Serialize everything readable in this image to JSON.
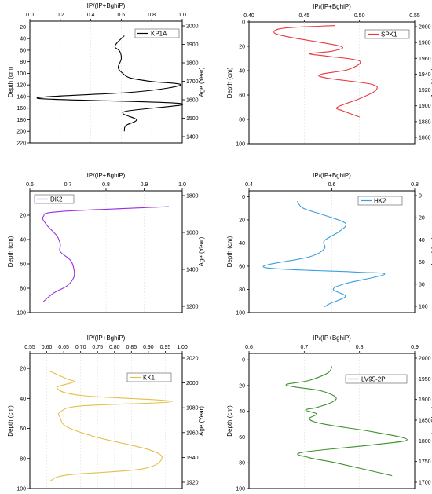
{
  "chart_data": [
    {
      "type": "line",
      "top_label": "IP/(IP+BghiP)",
      "ylabel": "Depth (cm)",
      "right_label": "Age (Year)",
      "legend": "KP1A",
      "series_color": "#000000",
      "xlim": [
        0.0,
        1.0
      ],
      "xticks": [
        "0.0",
        "0.2",
        "0.4",
        "0.6",
        "0.8",
        "1.0"
      ],
      "depth_lim": [
        10,
        220
      ],
      "depth_ticks": [
        "20",
        "40",
        "60",
        "80",
        "100",
        "120",
        "140",
        "160",
        "180",
        "200",
        "220"
      ],
      "age_ticks": [
        "2000",
        "1900",
        "1800",
        "1700",
        "1600",
        "1500",
        "1400"
      ],
      "points": [
        {
          "x": 0.62,
          "depth": 35
        },
        {
          "x": 0.57,
          "depth": 48
        },
        {
          "x": 0.56,
          "depth": 55
        },
        {
          "x": 0.59,
          "depth": 62
        },
        {
          "x": 0.6,
          "depth": 75
        },
        {
          "x": 0.58,
          "depth": 90
        },
        {
          "x": 0.61,
          "depth": 100
        },
        {
          "x": 0.66,
          "depth": 108
        },
        {
          "x": 0.8,
          "depth": 114
        },
        {
          "x": 0.99,
          "depth": 120
        },
        {
          "x": 0.7,
          "depth": 132
        },
        {
          "x": 0.05,
          "depth": 143
        },
        {
          "x": 0.99,
          "depth": 152
        },
        {
          "x": 0.62,
          "depth": 166
        },
        {
          "x": 0.7,
          "depth": 180
        },
        {
          "x": 0.63,
          "depth": 190
        },
        {
          "x": 0.62,
          "depth": 200
        }
      ]
    },
    {
      "type": "line",
      "top_label": "IP/(IP+BghiP)",
      "ylabel": "Depth (cm)",
      "right_label": "Age (Year)",
      "legend": "SPK1",
      "series_color": "#e8383d",
      "xlim": [
        0.4,
        0.55
      ],
      "xticks": [
        "0.40",
        "0.45",
        "0.50",
        "0.55"
      ],
      "depth_lim": [
        0,
        100
      ],
      "depth_ticks": [
        "0",
        "20",
        "40",
        "60",
        "80",
        "100"
      ],
      "age_ticks": [
        "2000",
        "1980",
        "1960",
        "1940",
        "1920",
        "1900",
        "1880",
        "1860"
      ],
      "points": [
        {
          "x": 0.478,
          "depth": 3
        },
        {
          "x": 0.432,
          "depth": 5
        },
        {
          "x": 0.423,
          "depth": 9
        },
        {
          "x": 0.44,
          "depth": 13
        },
        {
          "x": 0.483,
          "depth": 20
        },
        {
          "x": 0.475,
          "depth": 24
        },
        {
          "x": 0.455,
          "depth": 26
        },
        {
          "x": 0.47,
          "depth": 28
        },
        {
          "x": 0.5,
          "depth": 32
        },
        {
          "x": 0.49,
          "depth": 39
        },
        {
          "x": 0.465,
          "depth": 43
        },
        {
          "x": 0.47,
          "depth": 46
        },
        {
          "x": 0.51,
          "depth": 51
        },
        {
          "x": 0.515,
          "depth": 56
        },
        {
          "x": 0.5,
          "depth": 63
        },
        {
          "x": 0.48,
          "depth": 70
        },
        {
          "x": 0.485,
          "depth": 73
        },
        {
          "x": 0.5,
          "depth": 78
        }
      ]
    },
    {
      "type": "line",
      "top_label": "IP/(IP+BghiP)",
      "ylabel": "Depth (cm)",
      "right_label": "Age (Year)",
      "legend": "DK2",
      "series_color": "#9b30e0",
      "xlim": [
        0.57,
        1.02
      ],
      "xticks": [
        "0.6",
        "0.7",
        "0.8",
        "0.9",
        "1.0"
      ],
      "depth_lim": [
        0,
        100
      ],
      "depth_ticks": [
        "20",
        "40",
        "60",
        "80",
        "100"
      ],
      "age_ticks": [
        "1800",
        "1600",
        "1400",
        "1200"
      ],
      "points": [
        {
          "x": 0.98,
          "depth": 13
        },
        {
          "x": 0.66,
          "depth": 17
        },
        {
          "x": 0.61,
          "depth": 21
        },
        {
          "x": 0.62,
          "depth": 28
        },
        {
          "x": 0.65,
          "depth": 37
        },
        {
          "x": 0.66,
          "depth": 44
        },
        {
          "x": 0.66,
          "depth": 50
        },
        {
          "x": 0.69,
          "depth": 57
        },
        {
          "x": 0.7,
          "depth": 64
        },
        {
          "x": 0.7,
          "depth": 71
        },
        {
          "x": 0.68,
          "depth": 78
        },
        {
          "x": 0.64,
          "depth": 84
        },
        {
          "x": 0.61,
          "depth": 91
        }
      ]
    },
    {
      "type": "line",
      "top_label": "IP/(IP+BghiP)",
      "ylabel": "Depth (cm)",
      "right_label": "Age (Year)",
      "legend": "HK2",
      "series_color": "#3a9fe0",
      "xlim": [
        0.3,
        0.85
      ],
      "xticks": [
        "0.4",
        "0.6",
        "0.8"
      ],
      "depth_lim": [
        -5,
        100
      ],
      "depth_ticks": [
        "0",
        "20",
        "40",
        "60",
        "80",
        "100"
      ],
      "age_ticks": [
        "0",
        "20",
        "40",
        "60",
        "80",
        "100"
      ],
      "points": [
        {
          "x": 0.46,
          "depth": 4
        },
        {
          "x": 0.48,
          "depth": 10
        },
        {
          "x": 0.55,
          "depth": 16
        },
        {
          "x": 0.62,
          "depth": 23
        },
        {
          "x": 0.6,
          "depth": 30
        },
        {
          "x": 0.55,
          "depth": 38
        },
        {
          "x": 0.55,
          "depth": 45
        },
        {
          "x": 0.5,
          "depth": 52
        },
        {
          "x": 0.35,
          "depth": 61
        },
        {
          "x": 0.65,
          "depth": 65
        },
        {
          "x": 0.75,
          "depth": 67
        },
        {
          "x": 0.62,
          "depth": 75
        },
        {
          "x": 0.58,
          "depth": 80
        },
        {
          "x": 0.62,
          "depth": 86
        },
        {
          "x": 0.57,
          "depth": 92
        },
        {
          "x": 0.55,
          "depth": 95
        }
      ]
    },
    {
      "type": "line",
      "top_label": "IP/(IP+BghiP)",
      "ylabel": "Depth (cm)",
      "right_label": "Age (Year)",
      "legend": "KK1",
      "series_color": "#e3c04a",
      "xlim": [
        0.55,
        1.0
      ],
      "xticks": [
        "0.55",
        "0.60",
        "0.65",
        "0.70",
        "0.75",
        "0.80",
        "0.85",
        "0.90",
        "0.95",
        "1.00"
      ],
      "depth_lim": [
        10,
        100
      ],
      "depth_ticks": [
        "20",
        "40",
        "60",
        "80",
        "100"
      ],
      "age_ticks": [
        "2020",
        "2000",
        "1980",
        "1960",
        "1940",
        "1920"
      ],
      "points": [
        {
          "x": 0.61,
          "depth": 22
        },
        {
          "x": 0.66,
          "depth": 27
        },
        {
          "x": 0.68,
          "depth": 29
        },
        {
          "x": 0.63,
          "depth": 33
        },
        {
          "x": 0.7,
          "depth": 38
        },
        {
          "x": 0.97,
          "depth": 42
        },
        {
          "x": 0.7,
          "depth": 45
        },
        {
          "x": 0.64,
          "depth": 49
        },
        {
          "x": 0.64,
          "depth": 53
        },
        {
          "x": 0.66,
          "depth": 59
        },
        {
          "x": 0.75,
          "depth": 66
        },
        {
          "x": 0.9,
          "depth": 74
        },
        {
          "x": 0.94,
          "depth": 80
        },
        {
          "x": 0.88,
          "depth": 87
        },
        {
          "x": 0.66,
          "depth": 91
        },
        {
          "x": 0.61,
          "depth": 95
        }
      ]
    },
    {
      "type": "line",
      "top_label": "IP/(IP+BghiP)",
      "ylabel": "Depth (cm)",
      "right_label": "Age (Year)",
      "legend": "LV95-2P",
      "series_color": "#3e8f2d",
      "xlim": [
        0.52,
        0.96
      ],
      "xticks": [
        "0.6",
        "0.7",
        "0.8",
        "0.9"
      ],
      "depth_lim": [
        -5,
        100
      ],
      "depth_ticks": [
        "0",
        "20",
        "40",
        "60",
        "80",
        "100"
      ],
      "age_ticks": [
        "2000",
        "1950",
        "1900",
        "1850",
        "1800",
        "1750",
        "1700"
      ],
      "points": [
        {
          "x": 0.74,
          "depth": 5
        },
        {
          "x": 0.73,
          "depth": 10
        },
        {
          "x": 0.68,
          "depth": 16
        },
        {
          "x": 0.62,
          "depth": 19
        },
        {
          "x": 0.64,
          "depth": 21
        },
        {
          "x": 0.71,
          "depth": 24
        },
        {
          "x": 0.75,
          "depth": 29
        },
        {
          "x": 0.74,
          "depth": 33
        },
        {
          "x": 0.7,
          "depth": 37
        },
        {
          "x": 0.67,
          "depth": 39
        },
        {
          "x": 0.7,
          "depth": 42
        },
        {
          "x": 0.68,
          "depth": 46
        },
        {
          "x": 0.72,
          "depth": 50
        },
        {
          "x": 0.85,
          "depth": 56
        },
        {
          "x": 0.94,
          "depth": 62
        },
        {
          "x": 0.85,
          "depth": 66
        },
        {
          "x": 0.66,
          "depth": 72
        },
        {
          "x": 0.68,
          "depth": 76
        },
        {
          "x": 0.75,
          "depth": 80
        },
        {
          "x": 0.9,
          "depth": 90
        }
      ]
    }
  ]
}
